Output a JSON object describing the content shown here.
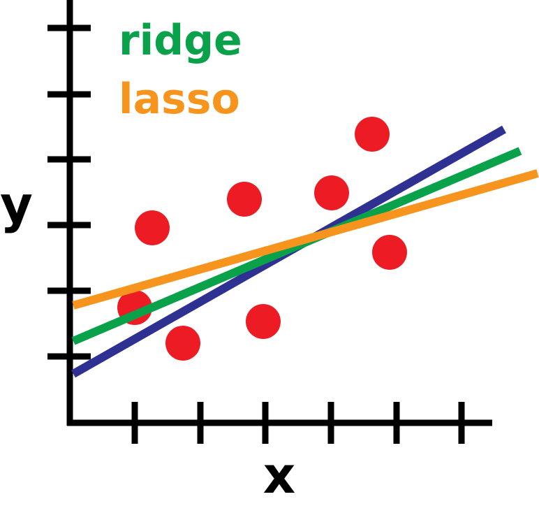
{
  "legend": [
    {
      "label": "ridge",
      "color": "#0aa14b"
    },
    {
      "label": "lasso",
      "color": "#f7941d"
    }
  ],
  "x_axis_label": "x",
  "y_axis_label": "y"
}
